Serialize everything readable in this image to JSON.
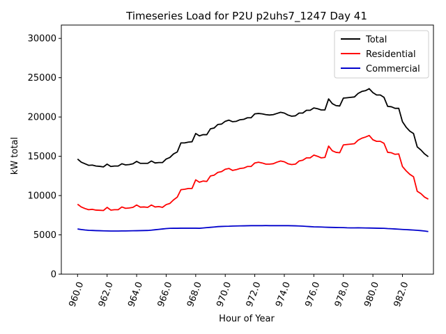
{
  "chart_data": {
    "type": "line",
    "title": "Timeseries Load for P2U p2uhs7_1247  Day 41",
    "xlabel": "Hour of Year",
    "ylabel": "kW total",
    "xlim": [
      958.9,
      984.1
    ],
    "ylim": [
      0,
      31700
    ],
    "x_ticks": [
      960,
      962,
      964,
      966,
      968,
      970,
      972,
      974,
      976,
      978,
      980,
      982
    ],
    "x_tick_labels": [
      "960.0",
      "962.0",
      "964.0",
      "966.0",
      "968.0",
      "970.0",
      "972.0",
      "974.0",
      "976.0",
      "978.0",
      "980.0",
      "982.0"
    ],
    "y_ticks": [
      0,
      5000,
      10000,
      15000,
      20000,
      25000,
      30000
    ],
    "y_tick_labels": [
      "0",
      "5000",
      "10000",
      "15000",
      "20000",
      "25000",
      "30000"
    ],
    "legend_position": "top-right",
    "x_start": 960,
    "x_step": 0.25,
    "series": [
      {
        "name": "Total",
        "color": "#000000",
        "values": [
          14650,
          14250,
          14050,
          13850,
          13880,
          13760,
          13720,
          13650,
          14000,
          13700,
          13760,
          13760,
          14050,
          13900,
          13950,
          14050,
          14350,
          14100,
          14100,
          14100,
          14400,
          14150,
          14200,
          14200,
          14650,
          14850,
          15300,
          15550,
          16700,
          16700,
          16800,
          16850,
          17900,
          17600,
          17750,
          17750,
          18500,
          18600,
          19050,
          19100,
          19450,
          19600,
          19400,
          19450,
          19650,
          19700,
          19900,
          19900,
          20400,
          20450,
          20400,
          20300,
          20250,
          20300,
          20450,
          20600,
          20500,
          20250,
          20100,
          20150,
          20500,
          20500,
          20850,
          20850,
          21150,
          21050,
          20900,
          20900,
          22300,
          21700,
          21450,
          21400,
          22400,
          22450,
          22500,
          22550,
          23000,
          23250,
          23350,
          23600,
          23100,
          22800,
          22800,
          22500,
          21350,
          21300,
          21100,
          21100,
          19400,
          18700,
          18200,
          17900,
          16200,
          15800,
          15300,
          14950
        ]
      },
      {
        "name": "Residential",
        "color": "#ff0000",
        "values": [
          8900,
          8550,
          8350,
          8200,
          8250,
          8150,
          8130,
          8100,
          8500,
          8150,
          8200,
          8200,
          8550,
          8380,
          8420,
          8500,
          8800,
          8530,
          8550,
          8500,
          8800,
          8550,
          8600,
          8500,
          8850,
          9000,
          9450,
          9800,
          10750,
          10800,
          10900,
          10900,
          12000,
          11700,
          11850,
          11800,
          12500,
          12600,
          12950,
          13050,
          13350,
          13450,
          13200,
          13300,
          13450,
          13500,
          13700,
          13700,
          14150,
          14250,
          14150,
          14000,
          14000,
          14050,
          14250,
          14400,
          14300,
          14050,
          13950,
          14000,
          14400,
          14500,
          14800,
          14800,
          15150,
          15000,
          14800,
          14850,
          16300,
          15700,
          15500,
          15450,
          16450,
          16500,
          16550,
          16600,
          17050,
          17300,
          17450,
          17650,
          17100,
          16900,
          16900,
          16650,
          15500,
          15450,
          15250,
          15300,
          13700,
          13150,
          12700,
          12400,
          10550,
          10250,
          9800,
          9550
        ]
      },
      {
        "name": "Commercial",
        "color": "#0000cc",
        "values": [
          5750,
          5680,
          5620,
          5580,
          5560,
          5540,
          5530,
          5510,
          5500,
          5490,
          5490,
          5490,
          5500,
          5500,
          5510,
          5520,
          5530,
          5540,
          5550,
          5560,
          5600,
          5650,
          5700,
          5750,
          5800,
          5830,
          5840,
          5840,
          5850,
          5850,
          5850,
          5850,
          5850,
          5840,
          5880,
          5920,
          5960,
          6000,
          6050,
          6070,
          6090,
          6100,
          6120,
          6130,
          6140,
          6150,
          6160,
          6170,
          6170,
          6170,
          6170,
          6180,
          6170,
          6170,
          6170,
          6170,
          6170,
          6170,
          6160,
          6150,
          6130,
          6110,
          6080,
          6050,
          6020,
          6010,
          6000,
          5980,
          5960,
          5950,
          5940,
          5930,
          5920,
          5900,
          5890,
          5890,
          5900,
          5890,
          5880,
          5870,
          5860,
          5850,
          5840,
          5830,
          5800,
          5780,
          5750,
          5720,
          5690,
          5670,
          5640,
          5610,
          5580,
          5540,
          5490,
          5420
        ]
      }
    ]
  }
}
